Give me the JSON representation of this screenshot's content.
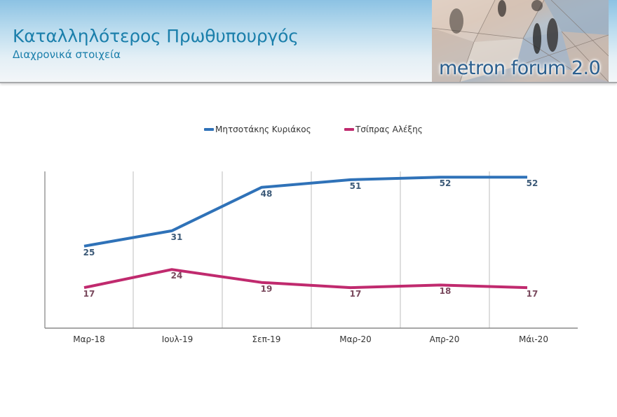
{
  "header": {
    "title": "Καταλληλότερος Πρωθυπουργός",
    "subtitle": "Διαχρονικά στοιχεία",
    "logo_text": "metron forum 2.0"
  },
  "colors": {
    "series_blue": "#2f72b8",
    "series_pink": "#c02a6e",
    "label_blue": "#3c5a78",
    "label_pink": "#7a4a5e",
    "gridline": "#c8c8c8",
    "axis": "#8a8a8a"
  },
  "legend": [
    {
      "label": "Μητσοτάκης Κυριάκος",
      "color": "#2f72b8"
    },
    {
      "label": "Τσίπρας Αλέξης",
      "color": "#c02a6e"
    }
  ],
  "chart_data": {
    "type": "line",
    "title": "Καταλληλότερος Πρωθυπουργός",
    "subtitle": "Διαχρονικά στοιχεία",
    "xlabel": "",
    "ylabel": "",
    "categories": [
      "Μαρ-18",
      "Ιουλ-19",
      "Σεπ-19",
      "Μαρ-20",
      "Απρ-20",
      "Μάι-20"
    ],
    "series": [
      {
        "name": "Μητσοτάκης Κυριάκος",
        "color": "#2f72b8",
        "values": [
          25,
          31,
          48,
          51,
          52,
          52
        ]
      },
      {
        "name": "Τσίπρας Αλέξης",
        "color": "#c02a6e",
        "values": [
          17,
          24,
          19,
          17,
          18,
          17
        ]
      }
    ],
    "data_labels": true,
    "legend_position": "top",
    "grid": {
      "vertical": true,
      "horizontal": false
    },
    "y_axis_visible": false
  }
}
